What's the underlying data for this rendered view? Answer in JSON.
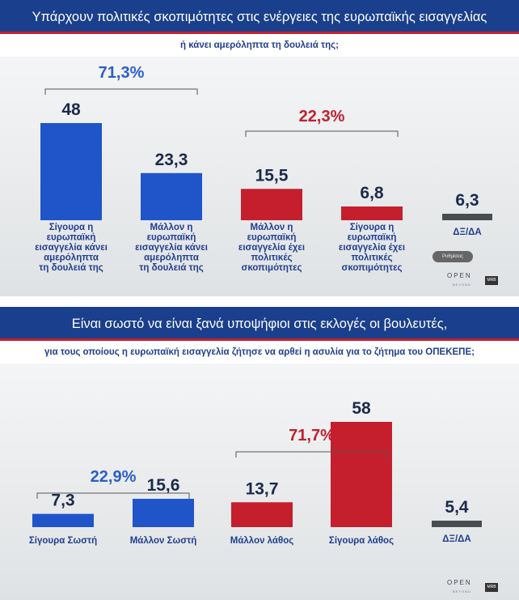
{
  "panel1": {
    "title": "Υπάρχουν πολιτικές σκοπιμότητες στις ενέργειες της ευρωπαϊκής εισαγγελίας",
    "subtitle": "ή κάνει αμερόληπτα τη δουλειά της;",
    "settings_pill": "Ρυθμίσεις",
    "logo": "OPEN",
    "logo_sub": "BEYOND",
    "badge": "MRB"
  },
  "panel2": {
    "title": "Είναι σωστό να είναι ξανά υποψήφιοι στις εκλογές οι βουλευτές,",
    "subtitle": "για τους οποίους η ευρωπαϊκή εισαγγελία ζήτησε να αρθεί η ασυλία για το ζήτημα του ΟΠΕΚΕΠΕ;",
    "logo": "OPEN",
    "logo_sub": "BEYOND",
    "badge": "MRB"
  },
  "colors": {
    "blue": "#1f55c8",
    "red": "#c51f2e",
    "gray": "#4a4d50",
    "navy": "#1a3f8c",
    "group_blue": "#2c5fc9",
    "group_red": "#c0202e"
  },
  "chart_data": [
    {
      "type": "bar",
      "title": "Υπάρχουν πολιτικές σκοπιμότητες στις ενέργειες της ευρωπαϊκής εισαγγελίας",
      "subtitle": "ή κάνει αμερόληπτα τη δουλειά της;",
      "categories": [
        [
          "Σίγουρα η",
          "ευρωπαϊκή",
          "εισαγγελία κάνει",
          "αμερόληπτα",
          "τη δουλειά της"
        ],
        [
          "Μάλλον η",
          "ευρωπαϊκή",
          "εισαγγελία κάνει",
          "αμερόληπτα",
          "τη δουλειά της"
        ],
        [
          "Μάλλον η",
          "ευρωπαϊκή",
          "εισαγγελία έχει",
          "πολιτικές",
          "σκοπιμότητες"
        ],
        [
          "Σίγουρα η",
          "ευρωπαϊκή",
          "εισαγγελία έχει",
          "πολιτικές",
          "σκοπιμότητες"
        ],
        [
          "ΔΞ/ΔΑ"
        ]
      ],
      "values": [
        48,
        23.3,
        15.5,
        6.8,
        6.3
      ],
      "value_labels": [
        "48",
        "23,3",
        "15,5",
        "6,8",
        "6,3"
      ],
      "bar_colors": [
        "blue",
        "blue",
        "red",
        "red",
        "gray"
      ],
      "groups": [
        {
          "label": "71,3%",
          "from": 0,
          "to": 1,
          "color": "group_blue"
        },
        {
          "label": "22,3%",
          "from": 2,
          "to": 3,
          "color": "group_red"
        }
      ]
    },
    {
      "type": "bar",
      "title": "Είναι σωστό να είναι ξανά υποψήφιοι στις εκλογές οι βουλευτές,",
      "subtitle": "για τους οποίους η ευρωπαϊκή εισαγγελία ζήτησε να αρθεί η ασυλία για το ζήτημα του ΟΠΕΚΕΠΕ;",
      "categories": [
        [
          "Σίγουρα Σωστή"
        ],
        [
          "Μάλλον Σωστή"
        ],
        [
          "Μάλλον λάθος"
        ],
        [
          "Σίγουρα λάθος"
        ],
        [
          "ΔΞ/ΔΑ"
        ]
      ],
      "values": [
        7.3,
        15.6,
        13.7,
        58,
        5.4
      ],
      "value_labels": [
        "7,3",
        "15,6",
        "13,7",
        "58",
        "5,4"
      ],
      "bar_colors": [
        "blue",
        "blue",
        "red",
        "red",
        "gray"
      ],
      "groups": [
        {
          "label": "22,9%",
          "from": 0,
          "to": 1,
          "color": "group_blue"
        },
        {
          "label": "71,7%",
          "from": 2,
          "to": 3,
          "color": "group_red"
        }
      ]
    }
  ]
}
